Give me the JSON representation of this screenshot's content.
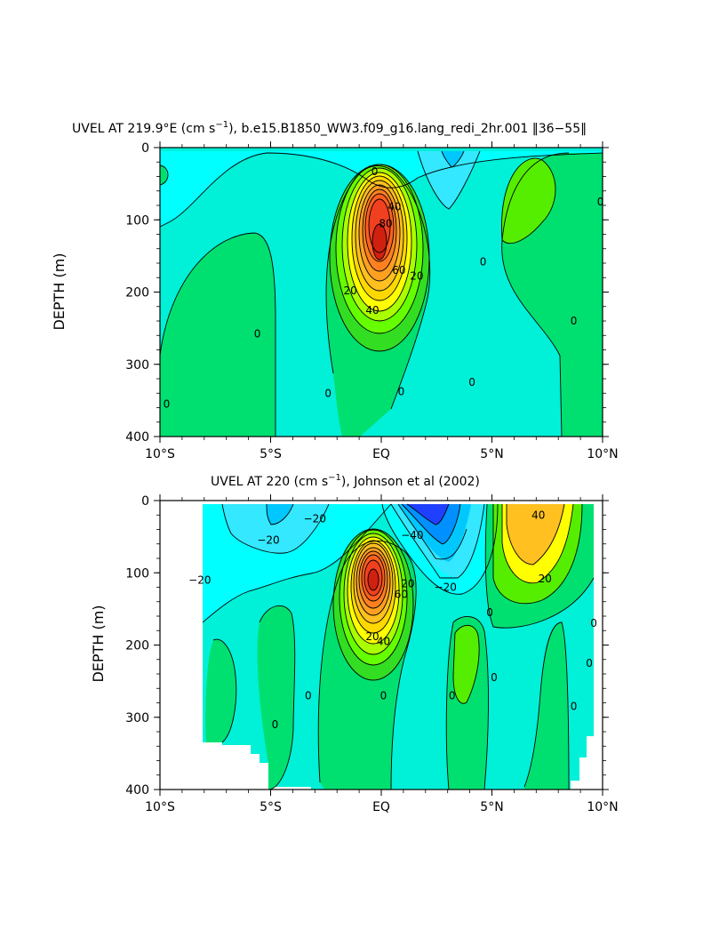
{
  "chart_data": [
    {
      "type": "contour",
      "title_prefix": "UVEL AT 219.9°E (cm s",
      "title_sup": "−1",
      "title_suffix": "), b.e15.B1850_WW3.f09_g16.lang_redi_2hr.001 ‖36−55‖",
      "ylabel": "DEPTH (m)",
      "xlabel": "",
      "x_ticks": [
        "10°S",
        "5°S",
        "EQ",
        "5°N",
        "10°N"
      ],
      "y_ticks": [
        "0",
        "100",
        "200",
        "300",
        "400"
      ],
      "xlim": [
        -10,
        10
      ],
      "ylim": [
        0,
        400
      ],
      "y_inverted": true,
      "contour_interval": 10,
      "contour_labels": [
        {
          "text": "0",
          "lat": -9.7,
          "depth": 355
        },
        {
          "text": "0",
          "lat": -5.6,
          "depth": 258
        },
        {
          "text": "0",
          "lat": -2.4,
          "depth": 340
        },
        {
          "text": "0",
          "lat": -0.3,
          "depth": 33
        },
        {
          "text": "0",
          "lat": 0.9,
          "depth": 338
        },
        {
          "text": "0",
          "lat": 4.1,
          "depth": 325
        },
        {
          "text": "0",
          "lat": 4.6,
          "depth": 158
        },
        {
          "text": "0",
          "lat": 8.7,
          "depth": 240
        },
        {
          "text": "0",
          "lat": 9.9,
          "depth": 75
        },
        {
          "text": "20",
          "lat": -1.4,
          "depth": 198
        },
        {
          "text": "20",
          "lat": 1.6,
          "depth": 178
        },
        {
          "text": "40",
          "lat": -0.4,
          "depth": 225
        },
        {
          "text": "40",
          "lat": 0.6,
          "depth": 82
        },
        {
          "text": "60",
          "lat": 0.8,
          "depth": 170
        },
        {
          "text": "80",
          "lat": 0.2,
          "depth": 105
        }
      ]
    },
    {
      "type": "contour",
      "title_prefix": "UVEL AT 220 (cm s",
      "title_sup": "−1",
      "title_suffix": "), Johnson et al (2002)",
      "ylabel": "DEPTH (m)",
      "xlabel": "",
      "x_ticks": [
        "10°S",
        "5°S",
        "EQ",
        "5°N",
        "10°N"
      ],
      "y_ticks": [
        "0",
        "100",
        "200",
        "300",
        "400"
      ],
      "xlim": [
        -10,
        10
      ],
      "ylim": [
        0,
        400
      ],
      "y_inverted": true,
      "contour_interval": 10,
      "contour_labels": [
        {
          "text": "−20",
          "lat": -5.1,
          "depth": 55
        },
        {
          "text": "−20",
          "lat": -8.2,
          "depth": 110
        },
        {
          "text": "−20",
          "lat": -3.0,
          "depth": 25
        },
        {
          "text": "−40",
          "lat": 1.4,
          "depth": 48
        },
        {
          "text": "−20",
          "lat": 2.9,
          "depth": 120
        },
        {
          "text": "20",
          "lat": -0.4,
          "depth": 188
        },
        {
          "text": "40",
          "lat": 0.1,
          "depth": 195
        },
        {
          "text": "20",
          "lat": 1.2,
          "depth": 115
        },
        {
          "text": "60",
          "lat": 0.9,
          "depth": 130
        },
        {
          "text": "40",
          "lat": 7.1,
          "depth": 20
        },
        {
          "text": "20",
          "lat": 7.4,
          "depth": 108
        },
        {
          "text": "0",
          "lat": -4.8,
          "depth": 310
        },
        {
          "text": "0",
          "lat": -3.3,
          "depth": 270
        },
        {
          "text": "0",
          "lat": 0.1,
          "depth": 270
        },
        {
          "text": "0",
          "lat": 3.2,
          "depth": 270
        },
        {
          "text": "0",
          "lat": 5.1,
          "depth": 245
        },
        {
          "text": "0",
          "lat": 4.9,
          "depth": 155
        },
        {
          "text": "0",
          "lat": 8.7,
          "depth": 285
        },
        {
          "text": "0",
          "lat": 9.4,
          "depth": 225
        },
        {
          "text": "0",
          "lat": 9.6,
          "depth": 170
        }
      ]
    }
  ]
}
